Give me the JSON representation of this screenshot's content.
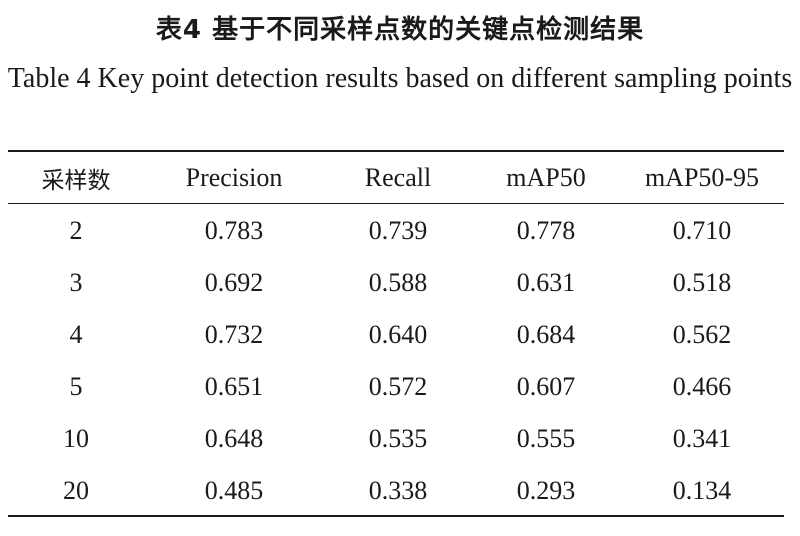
{
  "caption": {
    "cn": "表4  基于不同采样点数的关键点检测结果",
    "en": "Table 4  Key point detection results based on different sampling points"
  },
  "table": {
    "headers": [
      "采样数",
      "Precision",
      "Recall",
      "mAP50",
      "mAP50-95"
    ],
    "rows": [
      [
        "2",
        "0.783",
        "0.739",
        "0.778",
        "0.710"
      ],
      [
        "3",
        "0.692",
        "0.588",
        "0.631",
        "0.518"
      ],
      [
        "4",
        "0.732",
        "0.640",
        "0.684",
        "0.562"
      ],
      [
        "5",
        "0.651",
        "0.572",
        "0.607",
        "0.466"
      ],
      [
        "10",
        "0.648",
        "0.535",
        "0.555",
        "0.341"
      ],
      [
        "20",
        "0.485",
        "0.338",
        "0.293",
        "0.134"
      ]
    ]
  }
}
